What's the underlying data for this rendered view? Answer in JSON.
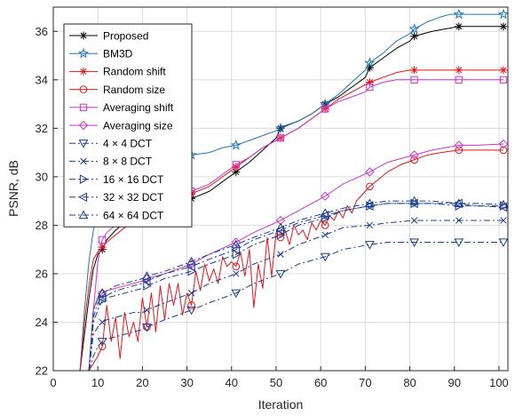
{
  "chart_data": {
    "type": "line",
    "title": "",
    "xlabel": "Iteration",
    "ylabel": "PSNR, dB",
    "xlim": [
      0,
      102
    ],
    "ylim": [
      22,
      37
    ],
    "xticks": [
      0,
      10,
      20,
      30,
      40,
      50,
      60,
      70,
      80,
      90,
      100
    ],
    "yticks": [
      22,
      24,
      26,
      28,
      30,
      32,
      34,
      36
    ],
    "grid": true,
    "legend_position": "top-left",
    "series": [
      {
        "name": "Proposed",
        "color": "#000000",
        "linestyle": "solid",
        "marker": "asterisk",
        "x": [
          6,
          7,
          8,
          9,
          10,
          11,
          12,
          14,
          16,
          18,
          20,
          22,
          24,
          26,
          28,
          30,
          31,
          35,
          38,
          41,
          44,
          47,
          50,
          51,
          52,
          55,
          58,
          61,
          64,
          67,
          70,
          71,
          74,
          77,
          80,
          81,
          85,
          88,
          91,
          95,
          98,
          101
        ],
        "y": [
          22,
          23.5,
          25,
          26.2,
          26.8,
          27,
          27.4,
          27.8,
          28.1,
          28.3,
          28.5,
          28.6,
          28.7,
          28.8,
          28.9,
          29,
          29.1,
          29.4,
          29.8,
          30.2,
          30.6,
          31.1,
          31.6,
          32,
          32.1,
          32.3,
          32.6,
          33,
          33.3,
          33.7,
          34.1,
          34.5,
          34.9,
          35.3,
          35.6,
          35.8,
          36,
          36.1,
          36.2,
          36.2,
          36.2,
          36.2
        ]
      },
      {
        "name": "BM3D",
        "color": "#1f77b4",
        "linestyle": "solid",
        "marker": "pentagram",
        "x": [
          6,
          7,
          8,
          9,
          10,
          11,
          12,
          14,
          16,
          18,
          20,
          22,
          24,
          26,
          28,
          30,
          31,
          35,
          38,
          41,
          44,
          47,
          50,
          51,
          55,
          58,
          61,
          64,
          67,
          70,
          71,
          74,
          77,
          80,
          81,
          84,
          87,
          89,
          91,
          95,
          98,
          101
        ],
        "y": [
          22,
          24.5,
          26.5,
          27.8,
          28.5,
          28.9,
          29.2,
          29.6,
          29.9,
          30.1,
          30.3,
          30.4,
          30.5,
          30.6,
          30.7,
          30.8,
          30.9,
          31,
          31.2,
          31.3,
          31.5,
          31.7,
          31.9,
          32,
          32.3,
          32.6,
          33,
          33.4,
          33.9,
          34.4,
          34.7,
          35.1,
          35.6,
          35.9,
          36.1,
          36.4,
          36.6,
          36.7,
          36.7,
          36.7,
          36.7,
          36.7
        ]
      },
      {
        "name": "Random shift",
        "color": "#e8151a",
        "linestyle": "solid",
        "marker": "asterisk",
        "x": [
          6,
          7,
          8,
          9,
          10,
          11,
          12,
          14,
          16,
          18,
          20,
          22,
          24,
          26,
          28,
          30,
          31,
          35,
          38,
          41,
          44,
          47,
          50,
          51,
          55,
          58,
          61,
          64,
          67,
          70,
          71,
          74,
          77,
          80,
          81,
          85,
          88,
          91,
          95,
          98,
          101
        ],
        "y": [
          22,
          24,
          25.5,
          26.6,
          26.9,
          27.1,
          27.3,
          27.6,
          27.9,
          28.1,
          28.3,
          28.5,
          28.7,
          28.9,
          29.1,
          29.2,
          29.3,
          29.6,
          30,
          30.4,
          30.8,
          31.2,
          31.5,
          31.6,
          32,
          32.4,
          32.8,
          33.2,
          33.5,
          33.8,
          33.9,
          34.1,
          34.3,
          34.4,
          34.4,
          34.4,
          34.4,
          34.4,
          34.4,
          34.4,
          34.4
        ]
      },
      {
        "name": "Random size",
        "color": "#e8151a",
        "linestyle": "solid",
        "marker": "circle",
        "x": [
          8,
          9,
          10,
          11,
          12,
          13,
          14,
          15,
          16,
          17,
          18,
          19,
          20,
          21,
          22,
          23,
          24,
          25,
          26,
          27,
          28,
          29,
          30,
          31,
          32,
          33,
          34,
          35,
          36,
          37,
          38,
          39,
          40,
          41,
          42,
          43,
          44,
          45,
          46,
          47,
          48,
          49,
          50,
          51,
          52,
          53,
          54,
          55,
          56,
          57,
          58,
          59,
          60,
          61,
          62,
          63,
          64,
          65,
          66,
          67,
          68,
          70,
          71,
          73,
          75,
          78,
          81,
          84,
          87,
          91,
          95,
          98,
          101
        ],
        "y": [
          22,
          22.3,
          22.6,
          23,
          24.7,
          23.2,
          24.2,
          22.5,
          24.4,
          23.4,
          24,
          23.2,
          25,
          23.8,
          25.2,
          23.6,
          25.5,
          24.1,
          25.6,
          24.7,
          25.6,
          24.3,
          25.2,
          24.7,
          26.1,
          25.3,
          26.4,
          25.7,
          26.2,
          25.6,
          26.7,
          26.3,
          26.5,
          26.3,
          26.9,
          25.9,
          27,
          24.6,
          26.4,
          25.4,
          27.5,
          25.9,
          27.7,
          27.5,
          27.8,
          27.2,
          28,
          27.6,
          27.8,
          27.4,
          28.1,
          27.8,
          28.2,
          28,
          28.4,
          28.2,
          28.6,
          28.3,
          28.8,
          28.5,
          29,
          29.4,
          29.6,
          29.9,
          30.2,
          30.5,
          30.7,
          30.9,
          31,
          31.1,
          31.1,
          31.1,
          31.1
        ]
      },
      {
        "name": "Averaging shift",
        "color": "#cc33cc",
        "linestyle": "solid",
        "marker": "square",
        "x": [
          8,
          9,
          10,
          11,
          12,
          14,
          16,
          18,
          20,
          22,
          24,
          26,
          28,
          30,
          31,
          35,
          38,
          41,
          44,
          47,
          50,
          51,
          55,
          58,
          61,
          64,
          67,
          70,
          71,
          74,
          77,
          80,
          81,
          85,
          88,
          91,
          95,
          98,
          101
        ],
        "y": [
          22,
          24.5,
          26.5,
          27.4,
          27.7,
          28,
          28.3,
          28.5,
          28.6,
          28.7,
          28.8,
          28.9,
          29.1,
          29.3,
          29.4,
          29.7,
          30.1,
          30.5,
          30.8,
          31.2,
          31.5,
          31.6,
          32,
          32.4,
          32.8,
          33.1,
          33.3,
          33.5,
          33.7,
          33.9,
          34,
          34,
          34,
          34,
          34,
          34,
          34,
          34,
          34
        ]
      },
      {
        "name": "Averaging size",
        "color": "#cc33cc",
        "linestyle": "solid",
        "marker": "diamond",
        "x": [
          8,
          9,
          10,
          11,
          12,
          14,
          16,
          18,
          20,
          21,
          25,
          31,
          35,
          41,
          45,
          51,
          55,
          61,
          65,
          71,
          75,
          81,
          85,
          91,
          95,
          101
        ],
        "y": [
          22,
          24.5,
          25,
          25.2,
          25.3,
          25.4,
          25.5,
          25.6,
          25.7,
          25.8,
          26,
          26.4,
          26.8,
          27.3,
          27.7,
          28.2,
          28.6,
          29.2,
          29.7,
          30.2,
          30.6,
          30.9,
          31.1,
          31.3,
          31.3,
          31.35
        ]
      },
      {
        "name": "4 × 4 DCT",
        "color": "#1a3d8f",
        "linestyle": "dashdot",
        "marker": "triangle-down",
        "x": [
          8,
          9,
          10,
          11,
          12,
          14,
          16,
          18,
          20,
          21,
          25,
          31,
          35,
          41,
          45,
          51,
          55,
          61,
          65,
          71,
          75,
          81,
          85,
          91,
          95,
          101
        ],
        "y": [
          22,
          22.6,
          23,
          23.2,
          23.3,
          23.4,
          23.5,
          23.6,
          23.7,
          23.8,
          24.1,
          24.5,
          24.8,
          25.2,
          25.6,
          26,
          26.4,
          26.7,
          27,
          27.2,
          27.3,
          27.3,
          27.3,
          27.3,
          27.3,
          27.3
        ]
      },
      {
        "name": "8 × 8 DCT",
        "color": "#1a3d8f",
        "linestyle": "dashdot",
        "marker": "x",
        "x": [
          8,
          9,
          10,
          11,
          12,
          14,
          16,
          18,
          20,
          21,
          25,
          31,
          35,
          41,
          45,
          51,
          55,
          61,
          65,
          71,
          75,
          81,
          85,
          91,
          95,
          101
        ],
        "y": [
          22,
          23.5,
          23.8,
          24,
          24.1,
          24.2,
          24.3,
          24.4,
          24.4,
          24.5,
          24.8,
          25.2,
          25.6,
          26,
          26.4,
          26.8,
          27.2,
          27.6,
          27.9,
          28,
          28.1,
          28.2,
          28.2,
          28.2,
          28.2,
          28.2
        ]
      },
      {
        "name": "16 × 16 DCT",
        "color": "#1a3d8f",
        "linestyle": "dashdot",
        "marker": "triangle-right",
        "x": [
          8,
          9,
          10,
          11,
          12,
          14,
          16,
          18,
          20,
          21,
          25,
          31,
          35,
          41,
          45,
          51,
          55,
          61,
          65,
          71,
          75,
          81,
          85,
          91,
          95,
          101
        ],
        "y": [
          22,
          24,
          24.5,
          24.9,
          25,
          25.1,
          25.2,
          25.3,
          25.4,
          25.5,
          25.8,
          26.1,
          26.4,
          26.8,
          27.2,
          27.6,
          28,
          28.3,
          28.6,
          28.8,
          28.9,
          28.9,
          28.9,
          28.8,
          28.8,
          28.8
        ]
      },
      {
        "name": "32 × 32 DCT",
        "color": "#1a3d8f",
        "linestyle": "dashdot",
        "marker": "triangle-left",
        "x": [
          8,
          9,
          10,
          11,
          12,
          14,
          16,
          18,
          20,
          21,
          25,
          31,
          35,
          41,
          45,
          51,
          55,
          61,
          65,
          71,
          75,
          81,
          85,
          91,
          95,
          101
        ],
        "y": [
          22,
          24.2,
          24.8,
          25,
          25.1,
          25.3,
          25.4,
          25.5,
          25.6,
          25.7,
          26,
          26.3,
          26.6,
          27,
          27.4,
          27.8,
          28.1,
          28.4,
          28.6,
          28.8,
          28.9,
          28.9,
          28.9,
          28.9,
          28.8,
          28.75
        ]
      },
      {
        "name": "64 × 64 DCT",
        "color": "#1a3d8f",
        "linestyle": "dashdot",
        "marker": "triangle-up",
        "x": [
          8,
          9,
          10,
          11,
          12,
          14,
          16,
          18,
          20,
          21,
          25,
          31,
          35,
          41,
          45,
          51,
          55,
          61,
          65,
          71,
          75,
          81,
          85,
          91,
          95,
          101
        ],
        "y": [
          22,
          24.5,
          25,
          25.2,
          25.3,
          25.5,
          25.6,
          25.7,
          25.8,
          25.9,
          26.1,
          26.5,
          26.8,
          27.2,
          27.5,
          27.9,
          28.2,
          28.5,
          28.7,
          28.9,
          29,
          29,
          29,
          28.9,
          28.9,
          28.85
        ]
      }
    ]
  }
}
